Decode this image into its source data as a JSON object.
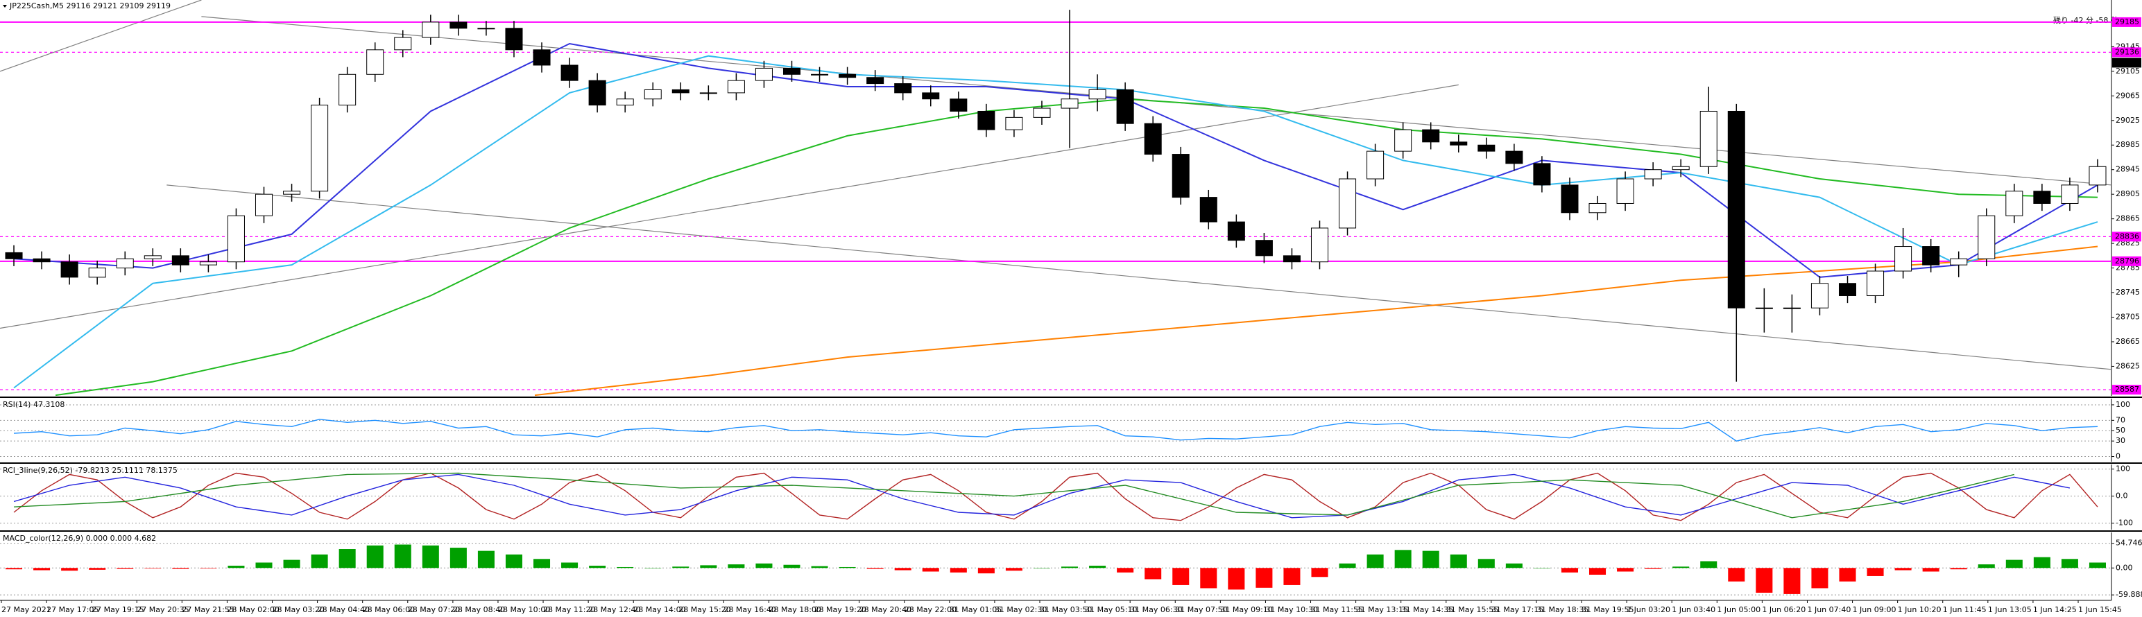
{
  "header": {
    "symbol": "JP225Cash,M5  29116 29121 29109 29119",
    "timer": "残り -42 分 -58 秒"
  },
  "chart_data": [
    {
      "type": "candlestick",
      "xlim": [
        -0.5,
        75.5
      ],
      "ylim": [
        28577,
        29221
      ],
      "yticks": [
        29145,
        29105,
        29065,
        29025,
        28985,
        28945,
        28905,
        28865,
        28825,
        28785,
        28745,
        28705,
        28665,
        28625
      ],
      "current_price": 29119,
      "level_color": "#ff00ff",
      "levels": [
        {
          "value": 29185,
          "dashed": false
        },
        {
          "value": 29136,
          "dashed": true
        },
        {
          "value": 28836,
          "dashed": true
        },
        {
          "value": 28796,
          "dashed": false
        },
        {
          "value": 28587,
          "dashed": true
        }
      ],
      "candles": [
        [
          28810,
          28822,
          28788,
          28800
        ],
        [
          28800,
          28812,
          28783,
          28795
        ],
        [
          28795,
          28807,
          28758,
          28770
        ],
        [
          28770,
          28797,
          28758,
          28785
        ],
        [
          28785,
          28812,
          28773,
          28800
        ],
        [
          28800,
          28817,
          28788,
          28805
        ],
        [
          28805,
          28817,
          28778,
          28790
        ],
        [
          28790,
          28807,
          28778,
          28795
        ],
        [
          28795,
          28882,
          28783,
          28870
        ],
        [
          28870,
          28917,
          28858,
          28905
        ],
        [
          28905,
          28922,
          28893,
          28910
        ],
        [
          28910,
          29062,
          28898,
          29050
        ],
        [
          29050,
          29112,
          29038,
          29100
        ],
        [
          29100,
          29152,
          29088,
          29140
        ],
        [
          29140,
          29172,
          29128,
          29160
        ],
        [
          29160,
          29197,
          29148,
          29185
        ],
        [
          29185,
          29197,
          29163,
          29175
        ],
        [
          29175,
          29187,
          29163,
          29175
        ],
        [
          29175,
          29187,
          29128,
          29140
        ],
        [
          29140,
          29152,
          29103,
          29115
        ],
        [
          29115,
          29127,
          29078,
          29090
        ],
        [
          29090,
          29102,
          29038,
          29050
        ],
        [
          29050,
          29072,
          29038,
          29060
        ],
        [
          29060,
          29087,
          29048,
          29075
        ],
        [
          29075,
          29087,
          29058,
          29070
        ],
        [
          29070,
          29082,
          29058,
          29070
        ],
        [
          29070,
          29102,
          29058,
          29090
        ],
        [
          29090,
          29122,
          29078,
          29110
        ],
        [
          29110,
          29122,
          29088,
          29100
        ],
        [
          29100,
          29112,
          29088,
          29100
        ],
        [
          29100,
          29112,
          29083,
          29095
        ],
        [
          29095,
          29107,
          29073,
          29085
        ],
        [
          29085,
          29097,
          29058,
          29070
        ],
        [
          29070,
          29082,
          29048,
          29060
        ],
        [
          29060,
          29072,
          29028,
          29040
        ],
        [
          29040,
          29052,
          28998,
          29010
        ],
        [
          29010,
          29042,
          28998,
          29030
        ],
        [
          29030,
          29057,
          29018,
          29045
        ],
        [
          29045,
          29205,
          28980,
          29060
        ],
        [
          29060,
          29100,
          29040,
          29075
        ],
        [
          29075,
          29087,
          29008,
          29020
        ],
        [
          29020,
          29032,
          28958,
          28970
        ],
        [
          28970,
          28982,
          28888,
          28900
        ],
        [
          28900,
          28912,
          28848,
          28860
        ],
        [
          28860,
          28872,
          28818,
          28830
        ],
        [
          28830,
          28842,
          28793,
          28805
        ],
        [
          28805,
          28817,
          28783,
          28795
        ],
        [
          28795,
          28862,
          28783,
          28850
        ],
        [
          28850,
          28942,
          28838,
          28930
        ],
        [
          28930,
          28987,
          28918,
          28975
        ],
        [
          28975,
          29022,
          28963,
          29010
        ],
        [
          29010,
          29022,
          28978,
          28990
        ],
        [
          28990,
          29002,
          28973,
          28985
        ],
        [
          28985,
          28997,
          28963,
          28975
        ],
        [
          28975,
          28987,
          28943,
          28955
        ],
        [
          28955,
          28967,
          28908,
          28920
        ],
        [
          28920,
          28932,
          28863,
          28875
        ],
        [
          28875,
          28902,
          28863,
          28890
        ],
        [
          28890,
          28942,
          28878,
          28930
        ],
        [
          28930,
          28957,
          28918,
          28945
        ],
        [
          28945,
          28962,
          28933,
          28950
        ],
        [
          28950,
          29080,
          28938,
          29040
        ],
        [
          29040,
          29052,
          28600,
          28720
        ],
        [
          28720,
          28752,
          28680,
          28720
        ],
        [
          28720,
          28742,
          28680,
          28720
        ],
        [
          28720,
          28772,
          28708,
          28760
        ],
        [
          28760,
          28772,
          28728,
          28740
        ],
        [
          28740,
          28792,
          28728,
          28780
        ],
        [
          28780,
          28850,
          28768,
          28820
        ],
        [
          28820,
          28832,
          28778,
          28790
        ],
        [
          28790,
          28812,
          28770,
          28800
        ],
        [
          28800,
          28882,
          28788,
          28870
        ],
        [
          28870,
          28922,
          28858,
          28910
        ],
        [
          28910,
          28922,
          28878,
          28890
        ],
        [
          28890,
          28932,
          28878,
          28920
        ],
        [
          28920,
          28962,
          28908,
          28950
        ]
      ],
      "moving_averages": [
        {
          "color": "#22bb22",
          "x": [
            1.5,
            5,
            10,
            15,
            20,
            25,
            30,
            35,
            40,
            45,
            50,
            55,
            60,
            65,
            70,
            75
          ],
          "values": [
            28578,
            28600,
            28650,
            28740,
            28850,
            28930,
            29000,
            29040,
            29060,
            29045,
            29010,
            28995,
            28970,
            28930,
            28905,
            28900
          ]
        },
        {
          "color": "#ff8000",
          "x": [
            18.75,
            25,
            30,
            35,
            40,
            45,
            50,
            55,
            60,
            65,
            70,
            75
          ],
          "values": [
            28578,
            28610,
            28640,
            28660,
            28680,
            28700,
            28720,
            28740,
            28765,
            28780,
            28795,
            28820
          ]
        },
        {
          "color": "#3333dd",
          "x": [
            0,
            5,
            10,
            15,
            20,
            25,
            30,
            35,
            40,
            45,
            50,
            55,
            60,
            65,
            70,
            75
          ],
          "values": [
            28800,
            28785,
            28840,
            29040,
            29150,
            29110,
            29080,
            29080,
            29060,
            28960,
            28880,
            28960,
            28940,
            28770,
            28790,
            28920
          ]
        },
        {
          "color": "#33bbee",
          "x": [
            0,
            5,
            10,
            15,
            20,
            25,
            30,
            35,
            40,
            45,
            50,
            55,
            60,
            65,
            70,
            75
          ],
          "values": [
            28590,
            28760,
            28790,
            28920,
            29070,
            29130,
            29100,
            29090,
            29075,
            29040,
            28960,
            28920,
            28940,
            28900,
            28790,
            28860
          ]
        }
      ],
      "trendline_color": "#808080",
      "trendlines": [
        {
          "x": [
            -0.5,
            6.75
          ],
          "values": [
            29105,
            29221
          ]
        },
        {
          "x": [
            5.5,
            75.5
          ],
          "values": [
            28920,
            28620
          ]
        },
        {
          "x": [
            -0.5,
            52
          ],
          "values": [
            28687,
            29083
          ]
        },
        {
          "x": [
            6.75,
            75.5
          ],
          "values": [
            29194,
            28920
          ]
        }
      ],
      "time_labels": [
        "27 May 2021",
        "27 May 17:05",
        "27 May 19:15",
        "27 May 20:35",
        "27 May 21:55",
        "28 May 02:00",
        "28 May 03:20",
        "28 May 04:40",
        "28 May 06:00",
        "28 May 07:20",
        "28 May 08:40",
        "28 May 10:00",
        "28 May 11:20",
        "28 May 12:40",
        "28 May 14:00",
        "28 May 15:20",
        "28 May 16:40",
        "28 May 18:00",
        "28 May 19:20",
        "28 May 20:40",
        "28 May 22:00",
        "31 May 01:05",
        "31 May 02:30",
        "31 May 03:50",
        "31 May 05:10",
        "31 May 06:30",
        "31 May 07:50",
        "31 May 09:10",
        "31 May 10:30",
        "31 May 11:55",
        "31 May 13:15",
        "31 May 14:35",
        "31 May 15:55",
        "31 May 17:15",
        "31 May 18:35",
        "31 May 19:55",
        "1 Jun 03:20",
        "1 Jun 03:40",
        "1 Jun 05:00",
        "1 Jun 06:20",
        "1 Jun 07:40",
        "1 Jun 09:00",
        "1 Jun 10:20",
        "1 Jun 11:45",
        "1 Jun 13:05",
        "1 Jun 14:25",
        "1 Jun 15:45"
      ]
    },
    {
      "type": "line",
      "title": "RSI(14) 47.3108",
      "ylim": [
        -10,
        112
      ],
      "yticks": [
        100,
        70,
        50,
        30,
        0
      ],
      "series": [
        {
          "color": "#1e90ff",
          "values": [
            45,
            48,
            40,
            42,
            55,
            50,
            44,
            52,
            68,
            62,
            58,
            72,
            66,
            70,
            64,
            68,
            55,
            58,
            42,
            40,
            45,
            38,
            52,
            55,
            50,
            48,
            56,
            60,
            50,
            52,
            48,
            45,
            42,
            46,
            40,
            38,
            52,
            55,
            58,
            60,
            40,
            38,
            32,
            35,
            34,
            38,
            42,
            58,
            66,
            62,
            64,
            52,
            50,
            48,
            44,
            40,
            36,
            50,
            58,
            55,
            54,
            66,
            30,
            42,
            48,
            56,
            46,
            58,
            62,
            48,
            52,
            64,
            60,
            50,
            56,
            58
          ]
        }
      ]
    },
    {
      "type": "line",
      "title": "RCI_3line(9,26,52) -79.8213 25.1111 78.1375",
      "ylim": [
        -124,
        117
      ],
      "yticks": [
        100,
        {
          "value": 0,
          "label": "0.0"
        },
        -100
      ],
      "series": [
        {
          "color": "#b22222",
          "x": [
            0,
            1,
            2,
            3,
            4,
            5,
            6,
            7,
            8,
            9,
            10,
            11,
            12,
            13,
            14,
            15,
            16,
            17,
            18,
            19,
            20,
            21,
            22,
            23,
            24,
            25,
            26,
            27,
            28,
            29,
            30,
            31,
            32,
            33,
            34,
            35,
            36,
            37,
            38,
            39,
            40,
            41,
            42,
            43,
            44,
            45,
            46,
            47,
            48,
            49,
            50,
            51,
            52,
            53,
            54,
            55,
            56,
            57,
            58,
            59,
            60,
            61,
            62,
            63,
            64,
            65,
            66,
            67,
            68,
            69,
            70,
            71,
            72,
            73,
            74,
            75
          ],
          "values": [
            -60,
            20,
            80,
            60,
            -20,
            -80,
            -40,
            40,
            85,
            70,
            10,
            -60,
            -85,
            -20,
            60,
            85,
            30,
            -50,
            -85,
            -30,
            50,
            80,
            20,
            -60,
            -80,
            0,
            70,
            85,
            10,
            -70,
            -85,
            -10,
            60,
            80,
            20,
            -60,
            -85,
            -20,
            70,
            85,
            -10,
            -80,
            -90,
            -40,
            30,
            80,
            60,
            -20,
            -80,
            -40,
            50,
            85,
            40,
            -50,
            -85,
            -20,
            60,
            85,
            20,
            -70,
            -90,
            -30,
            50,
            80,
            10,
            -60,
            -80,
            0,
            70,
            85,
            30,
            -50,
            -80,
            20,
            80,
            -40
          ]
        },
        {
          "color": "#2222dd",
          "x": [
            0,
            2,
            4,
            6,
            8,
            10,
            12,
            14,
            16,
            18,
            20,
            22,
            24,
            26,
            28,
            30,
            32,
            34,
            36,
            38,
            40,
            42,
            44,
            46,
            48,
            50,
            52,
            54,
            56,
            58,
            60,
            62,
            64,
            66,
            68,
            70,
            72,
            74
          ],
          "values": [
            -20,
            40,
            70,
            30,
            -40,
            -70,
            0,
            60,
            80,
            40,
            -30,
            -70,
            -50,
            20,
            70,
            60,
            -10,
            -60,
            -70,
            10,
            60,
            50,
            -20,
            -80,
            -70,
            -20,
            60,
            80,
            30,
            -40,
            -70,
            -10,
            50,
            40,
            -30,
            20,
            70,
            30
          ]
        },
        {
          "color": "#228b22",
          "x": [
            0,
            4,
            8,
            12,
            16,
            20,
            24,
            28,
            32,
            36,
            40,
            44,
            48,
            52,
            56,
            60,
            64,
            68,
            72
          ],
          "values": [
            -40,
            -20,
            40,
            80,
            85,
            60,
            30,
            40,
            20,
            0,
            40,
            -60,
            -70,
            40,
            60,
            40,
            -80,
            -20,
            80
          ]
        }
      ]
    },
    {
      "type": "bar",
      "title": "MACD_color(12,26,9) 0.000 0.000 4.682",
      "ylim": [
        -72,
        79
      ],
      "yticks": [
        54.746,
        {
          "value": 0,
          "label": "0.00"
        },
        -59.888
      ],
      "positive_color": "#00a000",
      "negative_color": "#ff0000",
      "values": [
        -3,
        -5,
        -6,
        -4,
        -2,
        -1,
        -2,
        -1,
        5,
        12,
        18,
        30,
        42,
        50,
        52,
        50,
        45,
        38,
        30,
        20,
        12,
        5,
        2,
        0,
        3,
        6,
        8,
        10,
        7,
        4,
        2,
        -2,
        -5,
        -8,
        -10,
        -12,
        -6,
        0,
        3,
        5,
        -10,
        -25,
        -38,
        -45,
        -48,
        -44,
        -38,
        -20,
        10,
        30,
        40,
        38,
        30,
        20,
        10,
        0,
        -10,
        -15,
        -8,
        -2,
        3,
        15,
        -30,
        -55,
        -58,
        -45,
        -30,
        -18,
        -5,
        -8,
        -3,
        8,
        18,
        24,
        20,
        12
      ]
    }
  ]
}
